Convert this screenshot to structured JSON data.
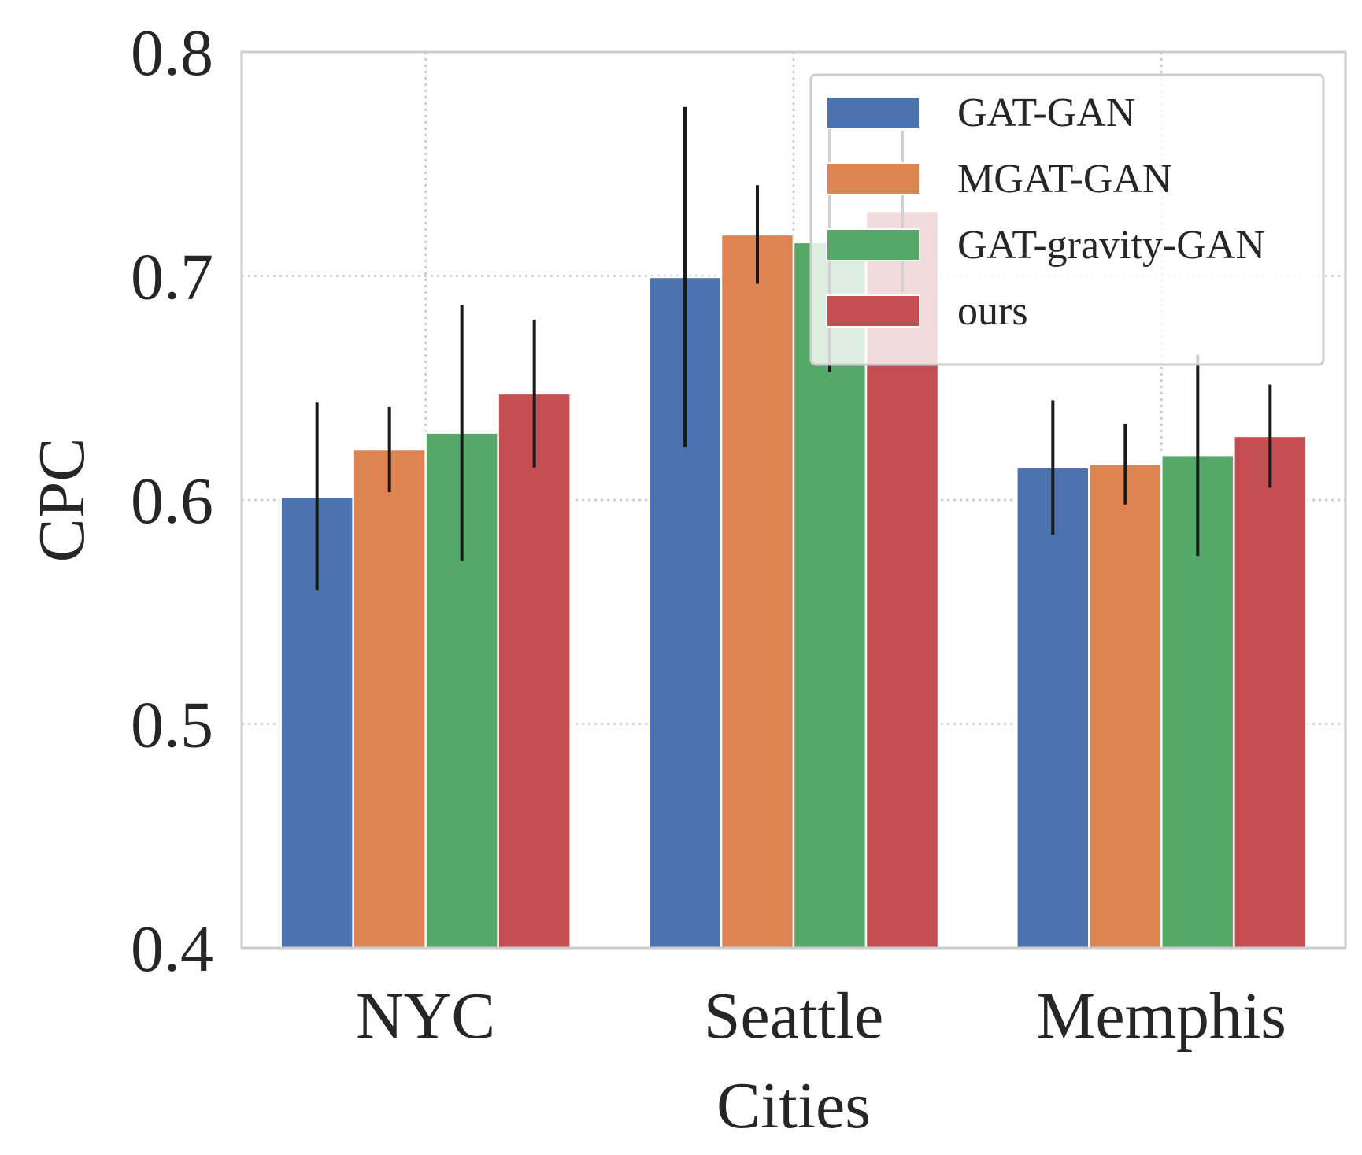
{
  "chart_data": {
    "type": "bar",
    "title": "",
    "xlabel": "Cities",
    "ylabel": "CPC",
    "ylim": [
      0.4,
      0.8
    ],
    "yticks": [
      0.4,
      0.5,
      0.6,
      0.7,
      0.8
    ],
    "ytick_labels": [
      "0.4",
      "0.5",
      "0.6",
      "0.7",
      "0.8"
    ],
    "categories": [
      "NYC",
      "Seattle",
      "Memphis"
    ],
    "grid": true,
    "legend_position": "top-right",
    "series": [
      {
        "name": "GAT-GAN",
        "color": "#4c72b0",
        "values": [
          0.6015,
          0.6995,
          0.6145
        ],
        "errors": [
          0.042,
          0.076,
          0.03
        ]
      },
      {
        "name": "MGAT-GAN",
        "color": "#dd8452",
        "values": [
          0.6225,
          0.7185,
          0.616
        ],
        "errors": [
          0.019,
          0.022,
          0.018
        ]
      },
      {
        "name": "GAT-gravity-GAN",
        "color": "#55a868",
        "values": [
          0.63,
          0.715,
          0.62
        ],
        "errors": [
          0.057,
          0.058,
          0.045
        ]
      },
      {
        "name": "ours",
        "color": "#c44e52",
        "values": [
          0.6475,
          0.729,
          0.6285
        ],
        "errors": [
          0.033,
          0.036,
          0.023
        ]
      }
    ]
  }
}
